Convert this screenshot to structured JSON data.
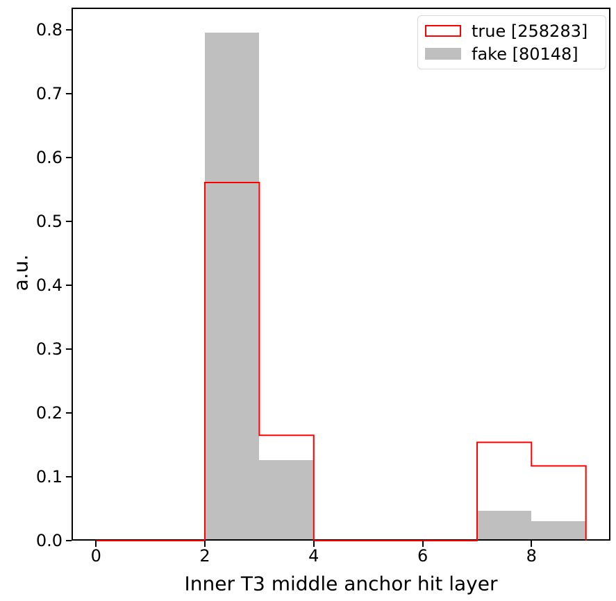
{
  "figure": {
    "background": "#ffffff",
    "axis_color": "#000000"
  },
  "chart_data": {
    "type": "bar",
    "subtype": "overlaid normalized histograms: step outline + filled",
    "title": "",
    "xlabel": "Inner T3 middle anchor hit layer",
    "ylabel": "a.u.",
    "bin_edges": [
      0,
      1,
      2,
      3,
      4,
      5,
      6,
      7,
      8,
      9
    ],
    "series": [
      {
        "name": "true",
        "entries": 258283,
        "legend_label": "true [258283]",
        "style": "step-outline",
        "color": "#ff0000",
        "values": [
          0,
          0,
          0.561,
          0.165,
          0,
          0,
          0,
          0.154,
          0.117
        ]
      },
      {
        "name": "fake",
        "entries": 80148,
        "legend_label": "fake [80148]",
        "style": "filled",
        "color": "#bfbfbf",
        "values": [
          0,
          0,
          0.796,
          0.126,
          0,
          0,
          0,
          0.047,
          0.03
        ]
      }
    ],
    "xticks": [
      0,
      2,
      4,
      6,
      8
    ],
    "ytick_labels": [
      "0.0",
      "0.1",
      "0.2",
      "0.3",
      "0.4",
      "0.5",
      "0.6",
      "0.7",
      "0.8"
    ],
    "xlim": [
      -0.45,
      9.45
    ],
    "ylim": [
      0,
      0.835
    ],
    "grid": false,
    "legend_position": "upper right"
  }
}
